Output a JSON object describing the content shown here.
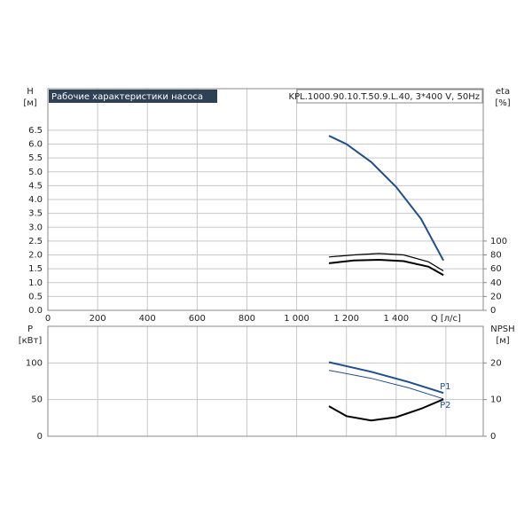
{
  "chart_data": [
    {
      "type": "line",
      "title": "Рабочие характеристики насоса",
      "subtitle": "KPL.1000.90.10.T.50.9.L.40, 3*400 V, 50Hz",
      "x_label": "Q [л/с]",
      "y_label": "H",
      "y_unit": "[м]",
      "y2_label": "eta",
      "y2_unit": "[%]",
      "xlim": [
        0,
        1750
      ],
      "xticks": [
        0,
        200,
        400,
        600,
        800,
        {
          "value": 1000,
          "label": "1 000"
        },
        {
          "value": 1200,
          "label": "1 200"
        },
        {
          "value": 1400,
          "label": "1 400"
        }
      ],
      "ylim": [
        0,
        8
      ],
      "yticks": [
        {
          "value": 0,
          "label": "0.0"
        },
        0.5,
        {
          "value": 1,
          "label": "1.0"
        },
        1.5,
        {
          "value": 2,
          "label": "2.0"
        },
        2.5,
        {
          "value": 3,
          "label": "3.0"
        },
        3.5,
        {
          "value": 4,
          "label": "4.0"
        },
        4.5,
        {
          "value": 5,
          "label": "5.0"
        },
        5.5,
        {
          "value": 6,
          "label": "6.0"
        },
        6.5
      ],
      "y2lim": [
        0,
        320
      ],
      "y2ticks": [
        0,
        20,
        40,
        60,
        80,
        100
      ],
      "grid": true,
      "show_xtick_labels": true,
      "series": [
        {
          "color": "#1f4e8c",
          "line_width": 2,
          "x": [
            1130,
            1200,
            1300,
            1400,
            1500,
            1590
          ],
          "values": [
            6.3,
            6.0,
            5.35,
            4.45,
            3.3,
            1.8
          ]
        },
        {
          "color": "#000000",
          "line_width": 1.2,
          "axis": "y2",
          "x": [
            1130,
            1230,
            1330,
            1430,
            1530,
            1590
          ],
          "values": [
            77,
            80,
            82,
            80,
            70,
            57
          ]
        },
        {
          "color": "#000000",
          "line_width": 2,
          "axis": "y2",
          "x": [
            1130,
            1230,
            1330,
            1430,
            1530,
            1590
          ],
          "values": [
            68,
            72,
            73,
            71,
            63,
            51
          ]
        }
      ]
    },
    {
      "type": "line",
      "y_label": "P",
      "y_unit": "[кВт]",
      "y2_label": "NPSH",
      "y2_unit": "[м]",
      "xlim": [
        0,
        1750
      ],
      "xticks": [
        0,
        200,
        400,
        600,
        800,
        1000,
        1200,
        1400,
        1600
      ],
      "show_xtick_labels": false,
      "ylim": [
        0,
        150
      ],
      "yticks": [
        0,
        50,
        100
      ],
      "y2lim": [
        0,
        30
      ],
      "y2ticks": [
        0,
        10,
        20
      ],
      "grid": true,
      "series": [
        {
          "name": "P1",
          "color": "#1f4e8c",
          "line_width": 2,
          "x": [
            1130,
            1300,
            1450,
            1590
          ],
          "values": [
            101,
            88,
            74,
            59
          ]
        },
        {
          "name": "P2",
          "color": "#1f4e8c",
          "line_width": 1,
          "x": [
            1130,
            1300,
            1450,
            1590
          ],
          "values": [
            90,
            79,
            66,
            51
          ]
        },
        {
          "color": "#000000",
          "line_width": 2,
          "axis": "y2",
          "x": [
            1130,
            1200,
            1300,
            1400,
            1500,
            1590
          ],
          "values": [
            8.2,
            5.5,
            4.3,
            5.2,
            7.5,
            10.1
          ]
        }
      ]
    }
  ]
}
